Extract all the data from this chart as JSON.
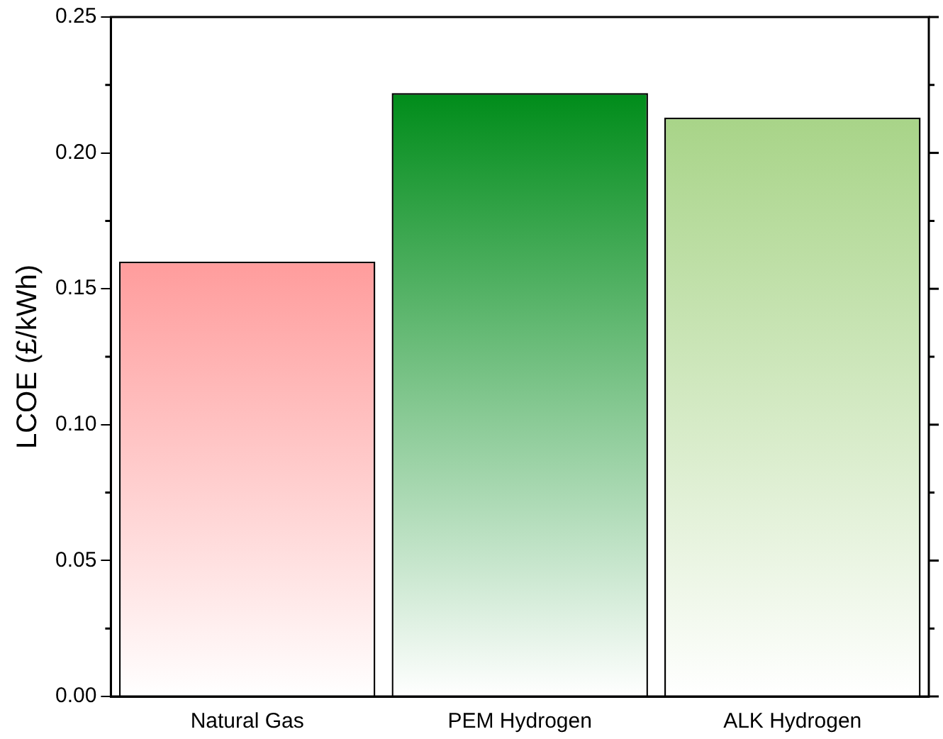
{
  "chart_data": {
    "type": "bar",
    "ylabel": "LCOE (£/kWh)",
    "categories": [
      "Natural Gas",
      "PEM Hydrogen",
      "ALK Hydrogen"
    ],
    "values": [
      0.16,
      0.222,
      0.213
    ],
    "colors": [
      "#ff9c9c",
      "#008c1a",
      "#a8d488"
    ],
    "ylim": [
      0,
      0.25
    ],
    "yticks": [
      {
        "value": 0,
        "label": "0.00"
      },
      {
        "value": 0.05,
        "label": "0.05"
      },
      {
        "value": 0.1,
        "label": "0.10"
      },
      {
        "value": 0.15,
        "label": "0.15"
      },
      {
        "value": 0.2,
        "label": "0.20"
      },
      {
        "value": 0.25,
        "label": "0.25"
      }
    ],
    "grid": false,
    "legend": false
  }
}
